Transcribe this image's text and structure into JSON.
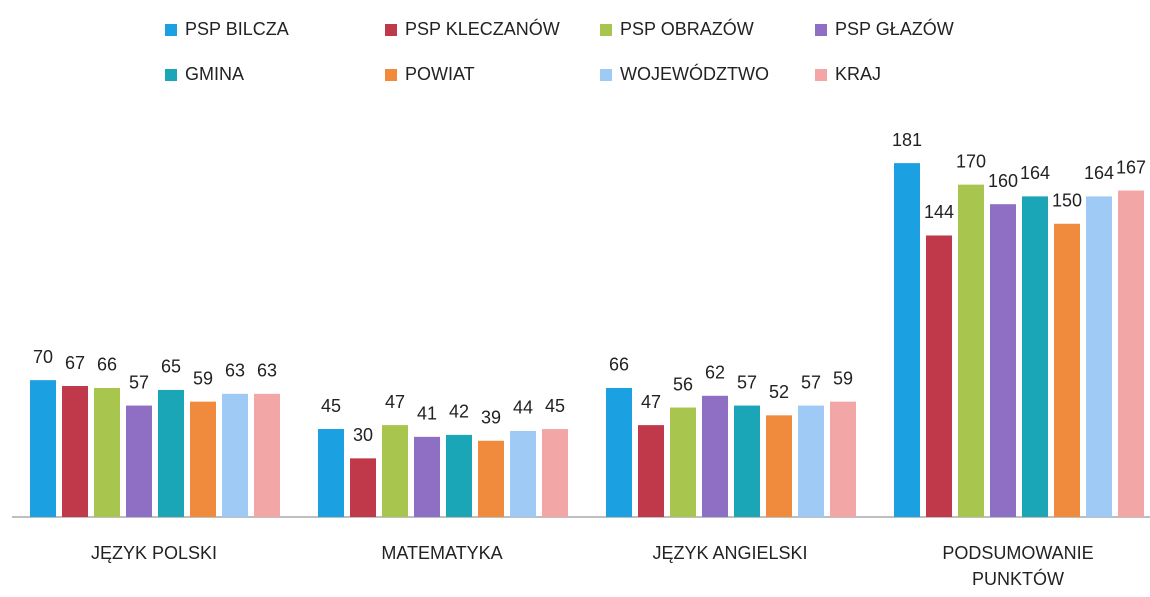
{
  "chart_data": {
    "type": "bar",
    "categories": [
      "JĘZYK POLSKI",
      "MATEMATYKA",
      "JĘZYK ANGIELSKI",
      "PODSUMOWANIE PUNKTÓW"
    ],
    "series": [
      {
        "name": "PSP BILCZA",
        "color": "#1ba1e2",
        "values": [
          70,
          45,
          66,
          181
        ]
      },
      {
        "name": "PSP KLECZANÓW",
        "color": "#c0394b",
        "values": [
          67,
          30,
          47,
          144
        ]
      },
      {
        "name": "PSP OBRAZÓW",
        "color": "#a8c64e",
        "values": [
          66,
          47,
          56,
          170
        ]
      },
      {
        "name": "PSP GŁAZÓW",
        "color": "#8e6fc4",
        "values": [
          57,
          41,
          62,
          160
        ]
      },
      {
        "name": "GMINA",
        "color": "#1aa6b7",
        "values": [
          65,
          42,
          57,
          164
        ]
      },
      {
        "name": "POWIAT",
        "color": "#f08a3c",
        "values": [
          59,
          39,
          52,
          150
        ]
      },
      {
        "name": "WOJEWÓDZTWO",
        "color": "#9fcaf5",
        "values": [
          63,
          44,
          57,
          164
        ]
      },
      {
        "name": "KRAJ",
        "color": "#f2a6a6",
        "values": [
          63,
          45,
          59,
          167
        ]
      }
    ],
    "ylim": [
      0,
      200
    ]
  }
}
